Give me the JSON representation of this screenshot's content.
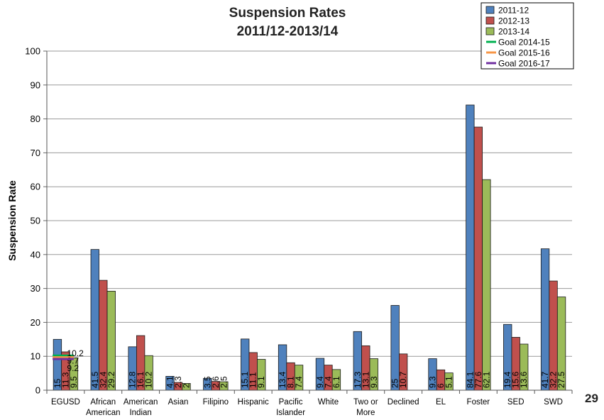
{
  "page_number": "29",
  "chart_data": {
    "type": "bar",
    "title": "Suspension Rates",
    "subtitle": "2011/12-2013/14",
    "ylabel": "Suspension Rate",
    "xlabel": "",
    "ylim": [
      0,
      100
    ],
    "yticks": [
      0,
      10,
      20,
      30,
      40,
      50,
      60,
      70,
      80,
      90,
      100
    ],
    "grid": true,
    "legend_position": "top-right",
    "categories": [
      [
        "EGUSD"
      ],
      [
        "African",
        "American"
      ],
      [
        "American",
        "Indian"
      ],
      [
        "Asian"
      ],
      [
        "Filipino"
      ],
      [
        "Hispanic"
      ],
      [
        "Pacific",
        "Islander"
      ],
      [
        "White"
      ],
      [
        "Two or",
        "More"
      ],
      [
        "Declined"
      ],
      [
        "EL"
      ],
      [
        "Foster"
      ],
      [
        "SED"
      ],
      [
        "SWD"
      ]
    ],
    "series": [
      {
        "name": "2011-12",
        "color": "#4f81bd",
        "values": [
          15,
          41.5,
          12.8,
          4.1,
          3.5,
          15.1,
          13.4,
          9.4,
          17.3,
          25,
          9.3,
          84.1,
          19.4,
          41.7
        ],
        "labels": [
          "15",
          "41.5",
          "12.8",
          "4.1",
          "3.5",
          "15.1",
          "13.4",
          "9.4",
          "17.3",
          "25",
          "9.3",
          "84.1",
          "19.4",
          "41.7"
        ]
      },
      {
        "name": "2012-13",
        "color": "#c0504d",
        "values": [
          11.3,
          32.4,
          16.1,
          2.3,
          2.6,
          11.1,
          8.1,
          7.4,
          13.1,
          10.7,
          6,
          77.6,
          15.6,
          32.2
        ],
        "labels": [
          "11.3",
          "32.4",
          "16.1",
          "2.3",
          "2.6",
          "11.1",
          "8.1",
          "7.4",
          "13.1",
          "10.7",
          "6",
          "77.6",
          "15.6",
          "32.2"
        ]
      },
      {
        "name": "2013-14",
        "color": "#9bbb59",
        "values": [
          9.5,
          29.2,
          10.2,
          2,
          2.5,
          9.1,
          7.4,
          6.1,
          9.3,
          null,
          5.1,
          62.1,
          13.6,
          27.5
        ],
        "labels": [
          "9.5",
          "29.2",
          "10.2",
          "2",
          "2.5",
          "9.1",
          "7.4",
          "6.1",
          "9.3",
          "",
          "5.1",
          "62.1",
          "13.6",
          "27.5"
        ]
      }
    ],
    "goals": [
      {
        "name": "Goal 2014-15",
        "color": "#00b050",
        "value": 10.2,
        "label": "10.2"
      },
      {
        "name": "Goal 2015-16",
        "color": "#f79646",
        "value": 9.7,
        "label": "9.7"
      },
      {
        "name": "Goal 2016-17",
        "color": "#7030a0",
        "value": 9.2,
        "label": "9.2"
      }
    ]
  }
}
